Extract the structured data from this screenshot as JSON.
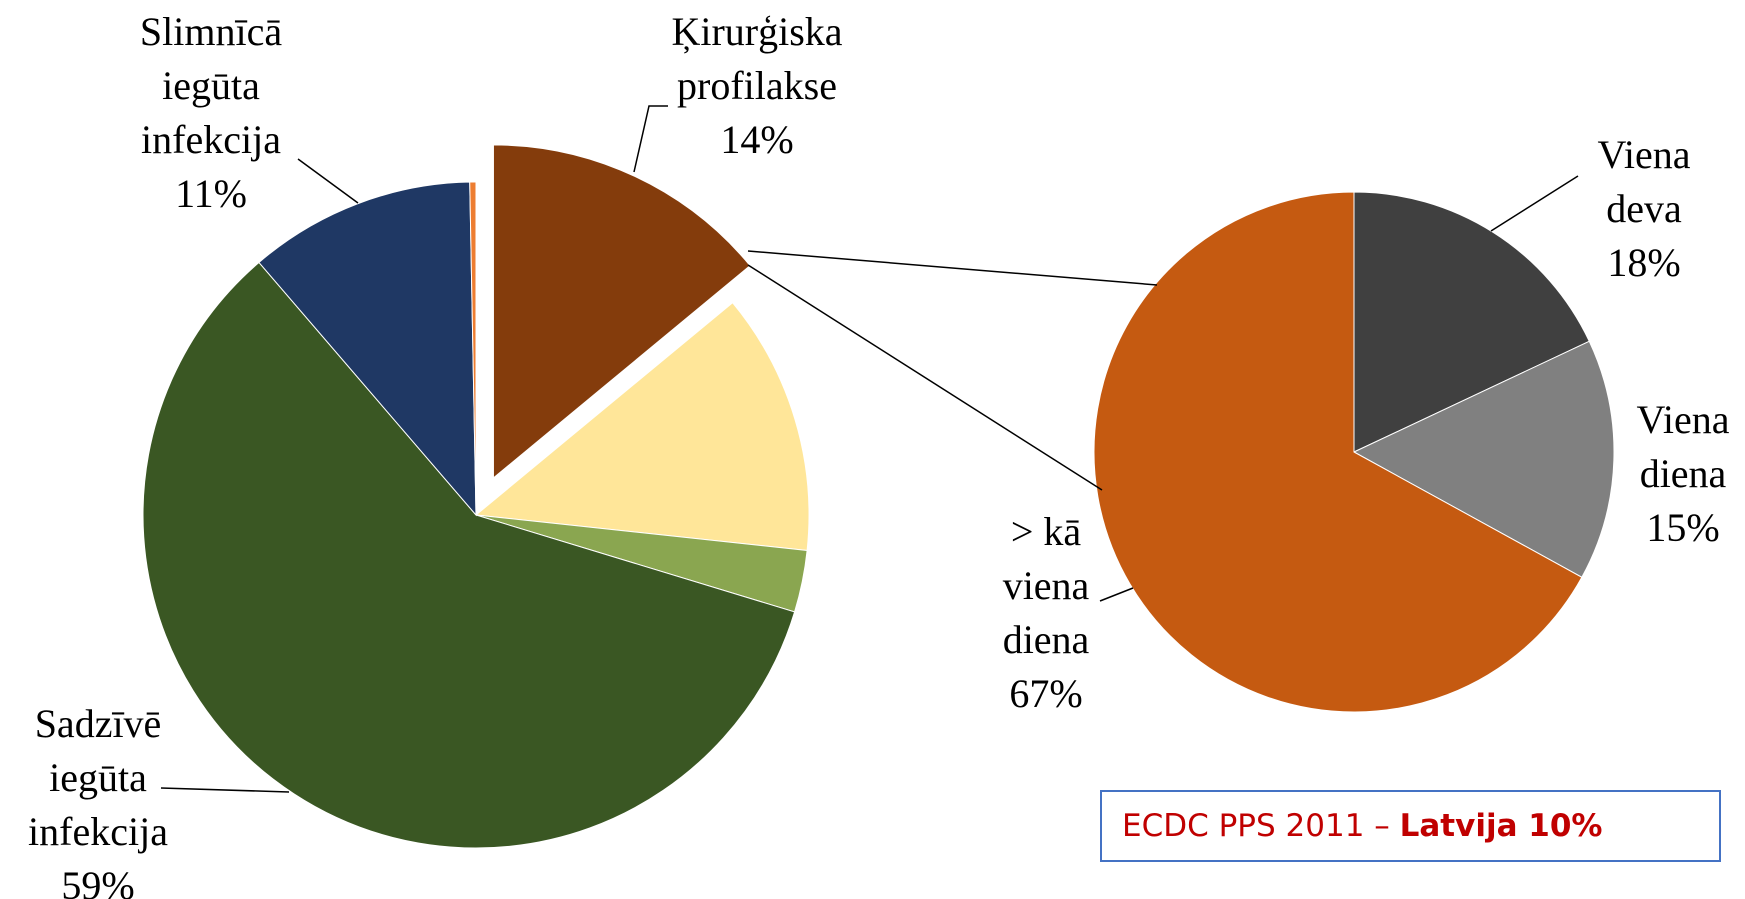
{
  "chart_data": [
    {
      "type": "pie",
      "categories": [
        "Ķirurģiska profilakse",
        null,
        null,
        "Sadzīvē iegūta infekcija",
        "Slimnīcā iegūta infekcija",
        null
      ],
      "values": [
        14,
        12.7,
        3,
        59,
        11,
        0.3
      ],
      "value_labels": [
        "14%",
        null,
        null,
        "59%",
        "11%",
        null
      ],
      "colors": [
        "#843c0c",
        "#ffe699",
        "#8aa650",
        "#3a5723",
        "#1f3864",
        "#ed7d31"
      ]
    },
    {
      "type": "pie",
      "categories": [
        "Viena deva",
        "Viena diena",
        "> kā viena diena"
      ],
      "values": [
        18,
        15,
        67
      ],
      "value_labels": [
        "18%",
        "15%",
        "67%"
      ],
      "colors": [
        "#404040",
        "#808080",
        "#c55a11"
      ]
    }
  ],
  "note": {
    "text": "ECDC PPS 2011 – ",
    "bold": "Latvija 10%"
  }
}
